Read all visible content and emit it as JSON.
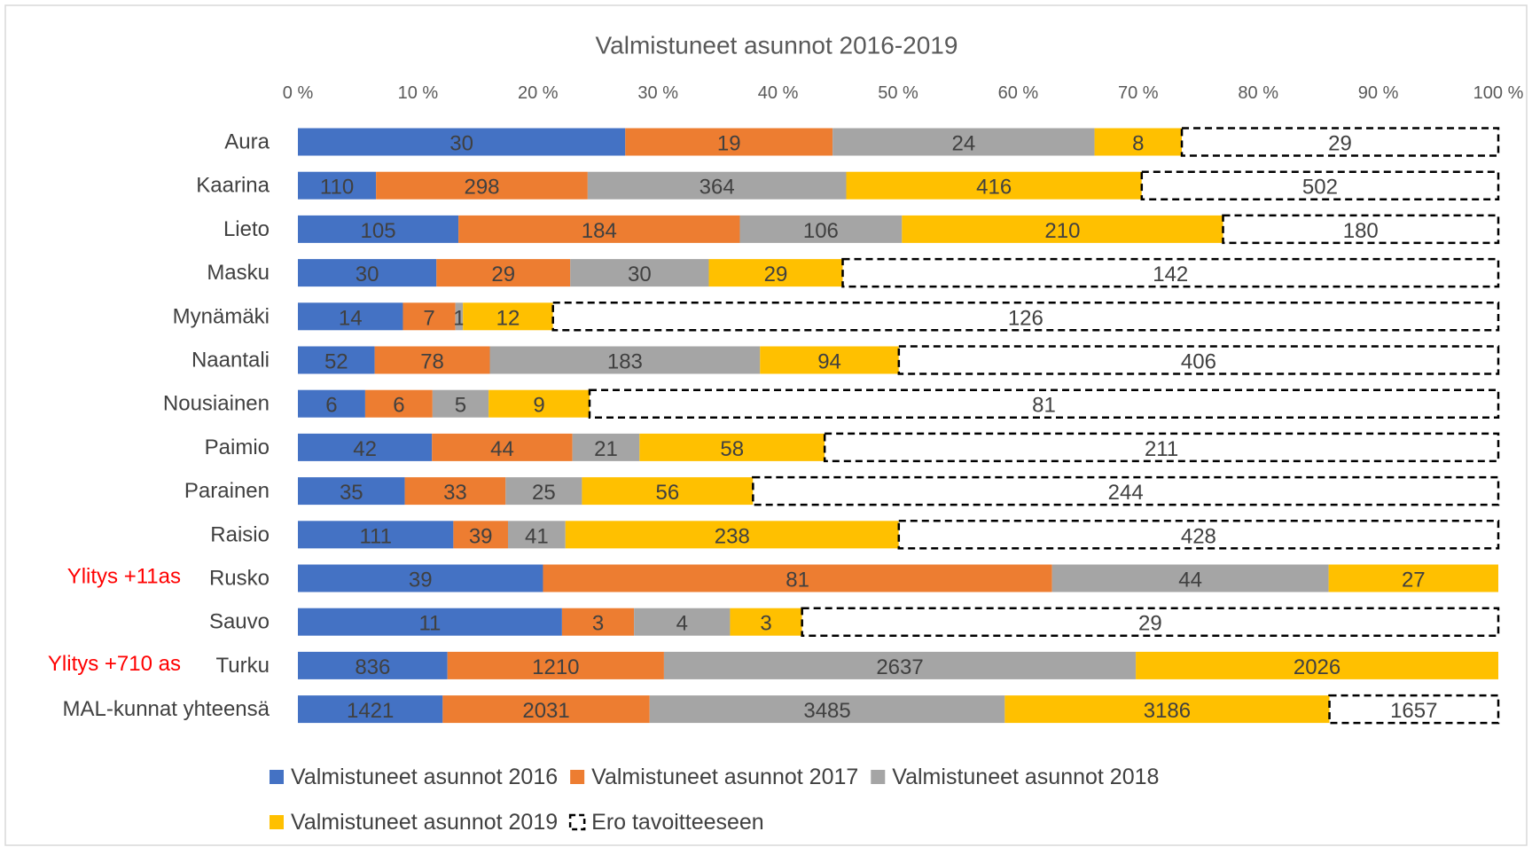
{
  "chart_data": {
    "type": "bar",
    "orientation": "horizontal",
    "stacked": "percent",
    "title": "Valmistuneet asunnot 2016-2019",
    "categories": [
      "Aura",
      "Kaarina",
      "Lieto",
      "Masku",
      "Mynämäki",
      "Naantali",
      "Nousiainen",
      "Paimio",
      "Parainen",
      "Raisio",
      "Rusko",
      "Sauvo",
      "Turku",
      "MAL-kunnat yhteensä"
    ],
    "series": [
      {
        "name": "Valmistuneet asunnot 2016",
        "color": "#4472c4",
        "values": [
          30,
          110,
          105,
          30,
          14,
          52,
          6,
          42,
          35,
          111,
          39,
          11,
          836,
          1421
        ]
      },
      {
        "name": "Valmistuneet asunnot 2017",
        "color": "#ed7d31",
        "values": [
          19,
          298,
          184,
          29,
          7,
          78,
          6,
          44,
          33,
          39,
          81,
          3,
          1210,
          2031
        ]
      },
      {
        "name": "Valmistuneet asunnot 2018",
        "color": "#a5a5a5",
        "values": [
          24,
          364,
          106,
          30,
          1,
          183,
          5,
          21,
          25,
          41,
          44,
          4,
          2637,
          3485
        ]
      },
      {
        "name": "Valmistuneet asunnot 2019",
        "color": "#ffc000",
        "values": [
          8,
          416,
          210,
          29,
          12,
          94,
          9,
          58,
          56,
          238,
          27,
          3,
          2026,
          3186
        ]
      },
      {
        "name": "Ero tavoitteeseen",
        "color": "#ffffff",
        "dashed": true,
        "values": [
          29,
          502,
          180,
          142,
          126,
          406,
          81,
          211,
          244,
          428,
          null,
          29,
          null,
          1657
        ]
      }
    ],
    "xlim": [
      0,
      100
    ],
    "xticks": [
      {
        "value": 0,
        "label": "0 %"
      },
      {
        "value": 10,
        "label": "10 %"
      },
      {
        "value": 20,
        "label": "20 %"
      },
      {
        "value": 30,
        "label": "30 %"
      },
      {
        "value": 40,
        "label": "40 %"
      },
      {
        "value": 50,
        "label": "50 %"
      },
      {
        "value": 60,
        "label": "60 %"
      },
      {
        "value": 70,
        "label": "70 %"
      },
      {
        "value": 80,
        "label": "80 %"
      },
      {
        "value": 90,
        "label": "90 %"
      },
      {
        "value": 100,
        "label": "100 %"
      }
    ],
    "grid": false,
    "legend": "bottom",
    "annotations": [
      {
        "text": "Ylitys +11as",
        "category": "Rusko",
        "color": "#ff0000"
      },
      {
        "text": "Ylitys +710 as",
        "category": "Turku",
        "color": "#ff0000"
      }
    ]
  }
}
